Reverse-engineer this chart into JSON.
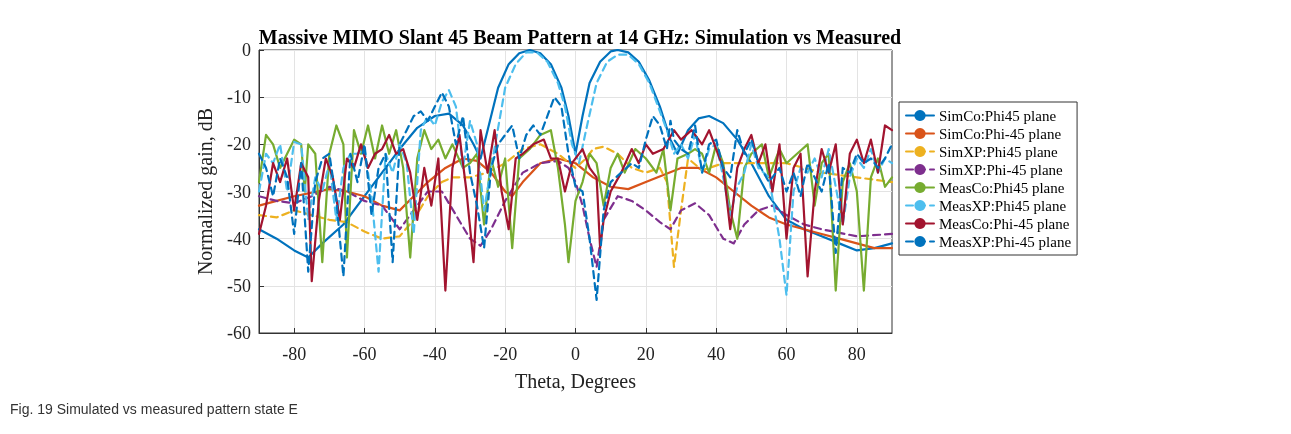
{
  "chart_data": {
    "type": "line",
    "title": "Massive MIMO Slant 45 Beam Pattern at 14 GHz: Simulation vs Measured",
    "xlabel": "Theta, Degrees",
    "ylabel": "Normalized gain, dB",
    "annotations": [
      "Fig. 19 Simulated vs measured pattern state E"
    ],
    "xlim": [
      -90,
      90
    ],
    "xticks": [
      -80,
      -60,
      -40,
      -20,
      0,
      20,
      40,
      60,
      80
    ],
    "ylim": [
      -60,
      0
    ],
    "yticks": [
      -60,
      -50,
      -40,
      -30,
      -20,
      -10,
      0
    ],
    "grid": true,
    "legend": "right",
    "marker": "none",
    "series": [
      {
        "name": "SimCo:Phi45 plane",
        "color": "#0072bd",
        "line_style": "solid",
        "x": [
          -90,
          -85,
          -80,
          -76,
          -72,
          -66,
          -60,
          -55,
          -50,
          -45,
          -40,
          -36,
          -32,
          -29,
          -27,
          -25,
          -22,
          -19,
          -16,
          -13,
          -10,
          -7,
          -4,
          -2,
          0,
          2,
          4,
          7,
          10,
          12,
          15,
          18,
          21,
          24,
          27,
          29,
          32,
          35,
          38,
          42,
          46,
          50,
          55,
          60,
          65,
          70,
          75,
          80,
          85,
          90
        ],
        "values": [
          -38,
          -40,
          -42.5,
          -44,
          -41,
          -37,
          -31,
          -26,
          -21,
          -16.5,
          -14,
          -13.5,
          -16,
          -20,
          -23,
          -17,
          -8,
          -3,
          -0.7,
          0,
          -0.7,
          -3,
          -8,
          -14,
          -22,
          -14,
          -7,
          -2.5,
          -0.3,
          0,
          -0.5,
          -2.5,
          -6.5,
          -12,
          -19,
          -22,
          -17,
          -14.5,
          -14,
          -15.5,
          -19,
          -24,
          -31,
          -36,
          -38,
          -39.5,
          -41,
          -42.5,
          -42,
          -41
        ]
      },
      {
        "name": "SimCo:Phi-45 plane",
        "color": "#d95319",
        "line_style": "solid",
        "x": [
          -90,
          -85,
          -80,
          -70,
          -65,
          -60,
          -55,
          -50,
          -46,
          -42,
          -37,
          -32,
          -28,
          -24,
          -20,
          -18,
          -15,
          -10,
          -5,
          0,
          5,
          10,
          15,
          20,
          25,
          30,
          35,
          40,
          45,
          50,
          55,
          60,
          65,
          70,
          75,
          80,
          85,
          90
        ],
        "values": [
          -33,
          -32,
          -31,
          -29.5,
          -30,
          -31,
          -33,
          -34,
          -31,
          -28,
          -25,
          -23,
          -23.5,
          -26,
          -30,
          -31,
          -28,
          -24,
          -23,
          -24,
          -27,
          -29,
          -29.5,
          -28,
          -26.5,
          -25,
          -25,
          -27,
          -30,
          -33,
          -35.5,
          -37,
          -38,
          -39,
          -40,
          -41,
          -42,
          -42
        ]
      },
      {
        "name": "SimXP:Phi45 plane",
        "color": "#edb120",
        "line_style": "dashed",
        "x": [
          -90,
          -85,
          -80,
          -75,
          -70,
          -65,
          -60,
          -55,
          -50,
          -46,
          -42,
          -38,
          -35,
          -30,
          -25,
          -20,
          -15,
          -10,
          -5,
          0,
          3,
          5,
          8,
          12,
          16,
          20,
          24,
          26,
          28,
          30,
          32,
          36,
          42,
          50,
          60,
          70,
          80,
          90
        ],
        "values": [
          -35,
          -35.5,
          -34,
          -35,
          -36,
          -36.5,
          -38.5,
          -40,
          -39.5,
          -36,
          -31,
          -28,
          -27,
          -27,
          -26,
          -24,
          -21,
          -20,
          -22,
          -25,
          -23,
          -21,
          -20.5,
          -22,
          -25,
          -26,
          -25,
          -28,
          -46,
          -34,
          -23,
          -25.5,
          -24,
          -24,
          -24,
          -26,
          -27,
          -28
        ]
      },
      {
        "name": "SimXP:Phi-45 plane",
        "color": "#7e2f8e",
        "line_style": "dashed",
        "x": [
          -90,
          -85,
          -80,
          -75,
          -70,
          -65,
          -60,
          -55,
          -50,
          -46,
          -42,
          -38,
          -34,
          -30,
          -27,
          -24,
          -20,
          -15,
          -10,
          -5,
          -2,
          0,
          2,
          4,
          6,
          8,
          12,
          16,
          20,
          24,
          27,
          30,
          34,
          38,
          42,
          45,
          48,
          52,
          56,
          60,
          65,
          70,
          80,
          90
        ],
        "values": [
          -31,
          -32,
          -32.5,
          -31,
          -29,
          -30,
          -32,
          -33,
          -38,
          -34,
          -30,
          -30,
          -35,
          -40,
          -41.5,
          -38,
          -32,
          -26,
          -24,
          -23.5,
          -25,
          -28,
          -33,
          -40,
          -46,
          -36,
          -31,
          -32,
          -34,
          -36.5,
          -38,
          -34,
          -32.5,
          -35,
          -40,
          -41,
          -37,
          -34,
          -33,
          -35,
          -37,
          -38,
          -39.5,
          -39
        ]
      },
      {
        "name": "MeasCo:Phi45 plane",
        "color": "#77ac30",
        "line_style": "solid",
        "x": [
          -90,
          -88,
          -86,
          -84,
          -82,
          -80,
          -78,
          -77,
          -76,
          -74,
          -72,
          -70,
          -68,
          -66,
          -65,
          -63,
          -61,
          -59,
          -57,
          -55,
          -53,
          -51,
          -49,
          -47,
          -45,
          -43,
          -41,
          -39,
          -37,
          -35,
          -32,
          -30,
          -28,
          -26,
          -24,
          -22,
          -20,
          -18,
          -16,
          -13,
          -10,
          -7,
          -5,
          -3,
          -2,
          0,
          2,
          4,
          6,
          8,
          10,
          12,
          14,
          17,
          20,
          23,
          25,
          27,
          29,
          32,
          34,
          36,
          38,
          40,
          42,
          44,
          46,
          48,
          50,
          53,
          55,
          58,
          60,
          63,
          66,
          68,
          70,
          72,
          74,
          76,
          78,
          80,
          82,
          84,
          86,
          88,
          90
        ],
        "values": [
          -28,
          -18,
          -20,
          -25,
          -22,
          -19,
          -20,
          -30,
          -20,
          -22,
          -45,
          -22,
          -16,
          -20,
          -44,
          -17,
          -22,
          -16,
          -23,
          -16,
          -22,
          -17,
          -25,
          -44,
          -23,
          -17,
          -21,
          -19,
          -23,
          -20,
          -25,
          -24,
          -22,
          -37,
          -23,
          -29,
          -23,
          -42,
          -23,
          -21,
          -18,
          -17,
          -25,
          -37,
          -45,
          -32,
          -28,
          -22,
          -24,
          -33,
          -25,
          -22,
          -26,
          -21,
          -23,
          -26,
          -21,
          -34,
          -23,
          -22,
          -21,
          -22,
          -26,
          -20,
          -24,
          -34,
          -40,
          -25,
          -22,
          -20,
          -27,
          -21,
          -24,
          -22,
          -20,
          -33,
          -24,
          -22,
          -51,
          -28,
          -24,
          -30,
          -51,
          -27,
          -23,
          -29,
          -27
        ]
      },
      {
        "name": "MeasXP:Phi45 plane",
        "color": "#4dbeee",
        "line_style": "dashed",
        "x": [
          -90,
          -88,
          -86,
          -84,
          -82,
          -80,
          -78,
          -76,
          -74,
          -72,
          -70,
          -68,
          -66,
          -64,
          -62,
          -60,
          -58,
          -56,
          -54,
          -52,
          -50,
          -48,
          -46,
          -44,
          -42,
          -40,
          -38,
          -36,
          -34,
          -32,
          -30,
          -28,
          -26,
          -24,
          -20,
          -17,
          -14,
          -11,
          -8,
          -5,
          -3,
          -1,
          1,
          3,
          6,
          9,
          12,
          15,
          18,
          21,
          24,
          26,
          28,
          30,
          32,
          34,
          36,
          38,
          40,
          42,
          44,
          46,
          48,
          50,
          52,
          55,
          58,
          60,
          62,
          64,
          66,
          68,
          70,
          72,
          74,
          76,
          78,
          80,
          82,
          84,
          86,
          88,
          90
        ],
        "values": [
          -30,
          -22,
          -24,
          -20,
          -30,
          -19.5,
          -20,
          -36,
          -27,
          -30,
          -24,
          -36,
          -25,
          -22,
          -22,
          -21,
          -31,
          -47,
          -22,
          -26,
          -20,
          -24,
          -39,
          -17,
          -14,
          -16,
          -11,
          -8.5,
          -12,
          -25,
          -15,
          -20,
          -34,
          -25,
          -8,
          -3,
          -0.5,
          -0.5,
          -2.5,
          -7,
          -12,
          -20,
          -24,
          -17,
          -7,
          -2.5,
          -1,
          -1,
          -3,
          -7,
          -13,
          -17,
          -22,
          -20,
          -23,
          -18,
          -26,
          -21,
          -20,
          -27,
          -35,
          -29,
          -26,
          -20,
          -25,
          -27,
          -40,
          -52,
          -30,
          -25,
          -26,
          -23,
          -27,
          -21,
          -29,
          -37,
          -27,
          -23,
          -25,
          -21,
          -26,
          -23,
          -24
        ]
      },
      {
        "name": "MeasCo:Phi-45 plane",
        "color": "#a2142f",
        "line_style": "solid",
        "x": [
          -90,
          -88,
          -86,
          -84,
          -82,
          -80,
          -78,
          -76,
          -75,
          -73,
          -71,
          -69,
          -67,
          -65,
          -63,
          -61,
          -59,
          -57,
          -55,
          -53,
          -51,
          -49,
          -47,
          -45,
          -43,
          -41,
          -39,
          -37,
          -35,
          -33,
          -31,
          -29,
          -27,
          -25,
          -23,
          -21,
          -19,
          -17,
          -15,
          -12,
          -9,
          -7,
          -5,
          -3,
          -1,
          2,
          4,
          6,
          7,
          8,
          10,
          13,
          16,
          18,
          20,
          22,
          25,
          28,
          30,
          33,
          36,
          38,
          40,
          42,
          44,
          46,
          48,
          50,
          52,
          54,
          56,
          58,
          60,
          62,
          64,
          66,
          68,
          70,
          72,
          74,
          76,
          78,
          80,
          82,
          84,
          86,
          88,
          90
        ],
        "values": [
          -39,
          -33,
          -24,
          -28,
          -23,
          -34,
          -24,
          -27,
          -49,
          -32,
          -23,
          -27,
          -36,
          -23,
          -25,
          -20,
          -25,
          -22,
          -21,
          -18,
          -22,
          -21,
          -26,
          -36,
          -25,
          -33,
          -23,
          -51,
          -25,
          -18,
          -30,
          -45,
          -17,
          -26,
          -17,
          -30,
          -38,
          -23,
          -22,
          -20,
          -19,
          -23,
          -23,
          -30,
          -24,
          -21,
          -25,
          -27,
          -42,
          -36,
          -30,
          -26,
          -21,
          -24,
          -20,
          -22,
          -21,
          -17,
          -19,
          -17,
          -20,
          -17,
          -21,
          -25,
          -38,
          -25,
          -21,
          -18,
          -24,
          -20,
          -30,
          -20,
          -40,
          -25,
          -22,
          -48,
          -30,
          -21,
          -26,
          -20,
          -37,
          -22,
          -19,
          -24,
          -19,
          -26,
          -16,
          -17
        ]
      },
      {
        "name": "MeasXP:Phi-45 plane",
        "color": "#0072bd",
        "line_style": "dashed",
        "x": [
          -90,
          -88,
          -86,
          -84,
          -82,
          -80,
          -78,
          -76,
          -74,
          -72,
          -70,
          -68,
          -66,
          -64,
          -62,
          -60,
          -58,
          -56,
          -54,
          -52,
          -50,
          -48,
          -46,
          -44,
          -42,
          -40,
          -38,
          -36,
          -34,
          -32,
          -30,
          -28,
          -26,
          -24,
          -22,
          -20,
          -18,
          -16,
          -14,
          -12,
          -10,
          -6,
          -4,
          -2,
          0,
          2,
          4,
          6,
          8,
          10,
          13,
          16,
          18,
          20,
          22,
          24,
          26,
          27,
          28,
          30,
          32,
          34,
          36,
          38,
          40,
          42,
          44,
          46,
          48,
          50,
          52,
          55,
          58,
          60,
          62,
          64,
          66,
          68,
          70,
          72,
          74,
          76,
          78,
          80,
          82,
          84,
          86,
          88,
          90
        ],
        "values": [
          -22,
          -25,
          -31,
          -23,
          -27,
          -39,
          -24,
          -47,
          -28,
          -23,
          -22,
          -32,
          -48,
          -22,
          -28,
          -20,
          -35,
          -25,
          -22,
          -45,
          -20,
          -17,
          -14,
          -13,
          -15,
          -12,
          -9,
          -12,
          -20,
          -14,
          -26,
          -33,
          -42,
          -25,
          -20,
          -18,
          -16,
          -23,
          -18,
          -16,
          -18,
          -10,
          -12,
          -22,
          -29,
          -30,
          -40,
          -53,
          -34,
          -28,
          -26,
          -24,
          -25,
          -19,
          -14,
          -16,
          -21,
          -15,
          -19,
          -21,
          -22,
          -16,
          -26,
          -20,
          -19,
          -25,
          -27,
          -17,
          -22,
          -19,
          -24,
          -28,
          -25,
          -30,
          -26,
          -31,
          -24,
          -27,
          -30,
          -24,
          -43,
          -25,
          -26,
          -22,
          -24,
          -23,
          -25,
          -23,
          -20
        ]
      }
    ]
  }
}
